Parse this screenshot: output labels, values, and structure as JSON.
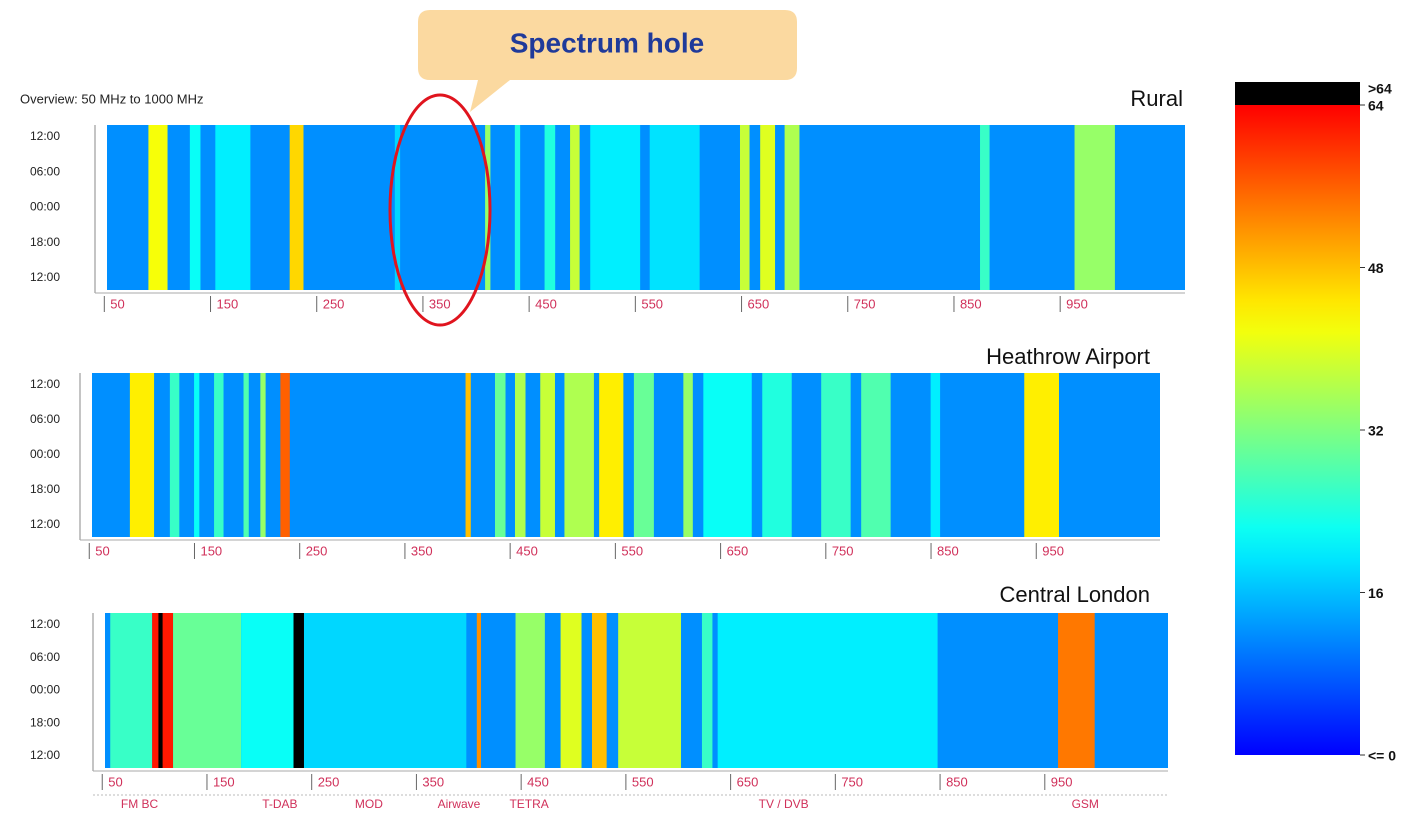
{
  "overview": "Overview: 50 MHz to 1000 MHz",
  "callout": "Spectrum hole",
  "colorbar": {
    "lim": [
      0,
      64
    ],
    "ticks": [
      {
        "value": 0,
        "label": "<= 0"
      },
      16,
      32,
      48,
      64
    ],
    "over_label": ">64",
    "over_color": "#000000"
  },
  "chart_data": [
    {
      "type": "heatmap",
      "title": "Rural",
      "xlim": [
        45,
        1060
      ],
      "xticks": [
        50,
        150,
        250,
        350,
        450,
        550,
        650,
        750,
        850,
        950
      ],
      "categories": [
        "12:00",
        "06:00",
        "00:00",
        "18:00",
        "12:00"
      ],
      "base_level": 12,
      "bands": [
        [
          84,
          102,
          42
        ],
        [
          123,
          133,
          22
        ],
        [
          147,
          180,
          20
        ],
        [
          217,
          230,
          46
        ],
        [
          316,
          321,
          18
        ],
        [
          401,
          406,
          34
        ],
        [
          429,
          434,
          24
        ],
        [
          457,
          467,
          24
        ],
        [
          481,
          490,
          38
        ],
        [
          500,
          547,
          20
        ],
        [
          556,
          603,
          19
        ],
        [
          641,
          650,
          38
        ],
        [
          660,
          674,
          40
        ],
        [
          683,
          697,
          36
        ],
        [
          867,
          876,
          26
        ],
        [
          956,
          994,
          34
        ]
      ]
    },
    {
      "type": "heatmap",
      "title": "Heathrow Airport",
      "xlim": [
        45,
        1060
      ],
      "xticks": [
        50,
        150,
        250,
        350,
        450,
        550,
        650,
        750,
        850,
        950
      ],
      "categories": [
        "12:00",
        "06:00",
        "00:00",
        "18:00",
        "12:00"
      ],
      "base_level": 12,
      "bands": [
        [
          81,
          104,
          44
        ],
        [
          119,
          128,
          26
        ],
        [
          142,
          147,
          22
        ],
        [
          161,
          170,
          26
        ],
        [
          189,
          194,
          28
        ],
        [
          205,
          210,
          34
        ],
        [
          224,
          233,
          56
        ],
        [
          400,
          405,
          48
        ],
        [
          428,
          438,
          30
        ],
        [
          447,
          457,
          36
        ],
        [
          471,
          485,
          38
        ],
        [
          494,
          522,
          36
        ],
        [
          527,
          550,
          44
        ],
        [
          560,
          579,
          30
        ],
        [
          607,
          616,
          34
        ],
        [
          626,
          672,
          22
        ],
        [
          682,
          710,
          24
        ],
        [
          738,
          766,
          26
        ],
        [
          776,
          804,
          28
        ],
        [
          842,
          851,
          20
        ],
        [
          931,
          964,
          44
        ]
      ]
    },
    {
      "type": "heatmap",
      "title": "Central London",
      "xlim": [
        45,
        1060
      ],
      "xticks": [
        50,
        150,
        250,
        350,
        450,
        550,
        650,
        750,
        850,
        950
      ],
      "categories": [
        "12:00",
        "06:00",
        "00:00",
        "18:00",
        "12:00"
      ],
      "base_level": 12,
      "bands": [
        [
          50,
          90,
          26
        ],
        [
          90,
          110,
          62
        ],
        [
          96,
          100,
          66
        ],
        [
          110,
          175,
          30
        ],
        [
          175,
          225,
          22
        ],
        [
          225,
          235,
          66
        ],
        [
          235,
          390,
          18
        ],
        [
          400,
          404,
          52
        ],
        [
          437,
          465,
          34
        ],
        [
          480,
          500,
          40
        ],
        [
          510,
          524,
          48
        ],
        [
          535,
          595,
          38
        ],
        [
          615,
          625,
          26
        ],
        [
          630,
          840,
          20
        ],
        [
          955,
          990,
          54
        ]
      ],
      "annotations": [
        {
          "x": 78,
          "label": "FM BC"
        },
        {
          "x": 212,
          "label": "T-DAB"
        },
        {
          "x": 297,
          "label": "MOD"
        },
        {
          "x": 383,
          "label": "Airwave"
        },
        {
          "x": 450,
          "label": "TETRA"
        },
        {
          "x": 693,
          "label": "TV / DVB"
        },
        {
          "x": 981,
          "label": "GSM"
        }
      ]
    }
  ]
}
